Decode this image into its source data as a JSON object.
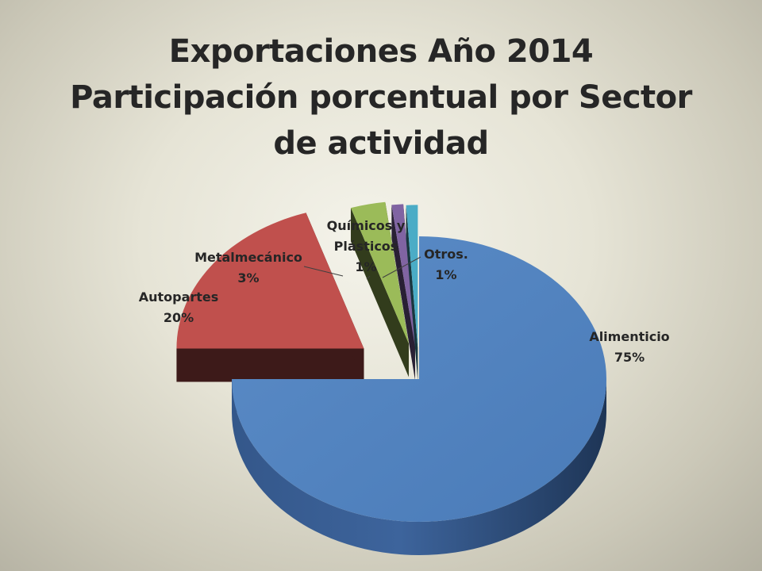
{
  "title_lines": [
    "Exportaciones Año 2014",
    "Participación porcentual por Sector",
    "de actividad"
  ],
  "chart_data": {
    "type": "pie",
    "style": "3d-exploded",
    "title": "Exportaciones Año 2014 Participación porcentual por Sector de actividad",
    "slices": [
      {
        "name": "Alimenticio",
        "value": 75,
        "label": "75%",
        "color": "#4f81bd"
      },
      {
        "name": "Autopartes",
        "value": 20,
        "label": "20%",
        "color": "#c0504d"
      },
      {
        "name": "Metalmecánico",
        "value": 3,
        "label": "3%",
        "color": "#9bbb59"
      },
      {
        "name": "Químicos y Plásticos",
        "value": 1,
        "label": "1%",
        "color": "#8064a2"
      },
      {
        "name": "Otros.",
        "value": 1,
        "label": "1%",
        "color": "#4bacc6"
      }
    ],
    "legend": "none",
    "data_labels": "outside"
  }
}
